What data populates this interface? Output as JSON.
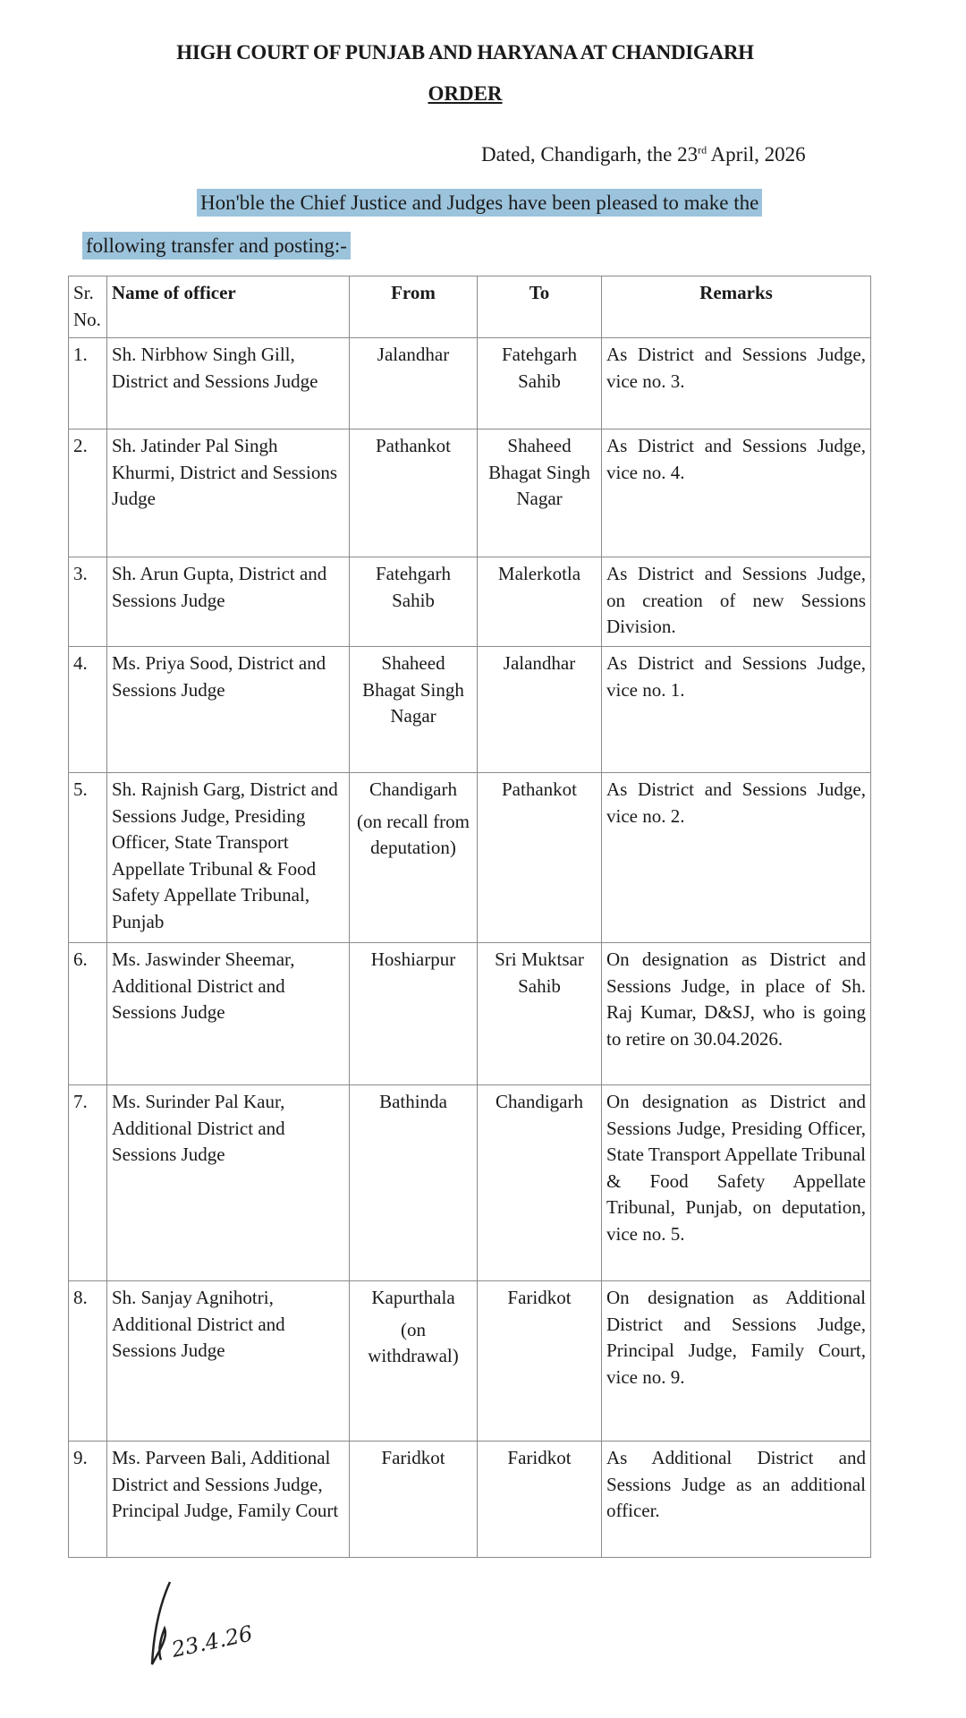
{
  "header": {
    "title": "HIGH COURT OF PUNJAB AND HARYANA  AT CHANDIGARH",
    "order": "ORDER"
  },
  "dated": {
    "prefix": "Dated, Chandigarh, the 23",
    "sup": "rd",
    "suffix": " April, 2026"
  },
  "intro": {
    "line1": "Hon'ble the Chief Justice and Judges have been pleased to make the",
    "line2": "following transfer and posting:-",
    "highlight_color": "#9cc3dc"
  },
  "table": {
    "headers": [
      "Sr. No.",
      "Name of officer",
      "From",
      "To",
      "Remarks"
    ],
    "rows": [
      {
        "sr": "1.",
        "name": "Sh. Nirbhow Singh Gill, District and Sessions Judge",
        "from": "Jalandhar",
        "to": "Fatehgarh Sahib",
        "remarks": "As District and Sessions Judge, vice no. 3."
      },
      {
        "sr": "2.",
        "name": "Sh. Jatinder Pal Singh Khurmi, District and Sessions Judge",
        "from": "Pathankot",
        "to": "Shaheed Bhagat Singh Nagar",
        "remarks": "As District and Sessions Judge, vice no. 4."
      },
      {
        "sr": "3.",
        "name": "Sh. Arun Gupta, District and Sessions Judge",
        "from": "Fatehgarh Sahib",
        "to": "Malerkotla",
        "remarks": "As District and Sessions Judge, on creation of new Sessions Division."
      },
      {
        "sr": "4.",
        "name": "Ms. Priya Sood, District and Sessions Judge",
        "from": "Shaheed Bhagat Singh Nagar",
        "to": "Jalandhar",
        "remarks": "As District and Sessions Judge, vice no. 1."
      },
      {
        "sr": "5.",
        "name": "Sh. Rajnish Garg, District and Sessions Judge, Presiding Officer, State Transport Appellate Tribunal & Food Safety Appellate Tribunal, Punjab",
        "from": "Chandigarh",
        "from_note": "(on recall from deputation)",
        "to": "Pathankot",
        "remarks": "As District and Sessions Judge, vice no. 2."
      },
      {
        "sr": "6.",
        "name": "Ms. Jaswinder Sheemar, Additional District and Sessions Judge",
        "from": "Hoshiarpur",
        "to": "Sri Muktsar Sahib",
        "remarks": "On designation as District and Sessions Judge, in place of Sh. Raj Kumar, D&SJ, who is going to retire on 30.04.2026."
      },
      {
        "sr": "7.",
        "name": "Ms. Surinder Pal Kaur, Additional District and Sessions Judge",
        "from": "Bathinda",
        "to": "Chandigarh",
        "remarks": "On designation as District and Sessions Judge, Presiding Officer, State Transport Appellate Tribunal & Food Safety Appellate Tribunal, Punjab, on deputation, vice no. 5."
      },
      {
        "sr": "8.",
        "name": "Sh. Sanjay Agnihotri, Additional District and Sessions Judge",
        "from": "Kapurthala",
        "from_note": "(on withdrawal)",
        "to": "Faridkot",
        "remarks": "On designation as Additional District and Sessions Judge, Principal Judge, Family Court, vice no. 9."
      },
      {
        "sr": "9.",
        "name": "Ms. Parveen Bali, Additional District and Sessions Judge, Principal Judge, Family Court",
        "from": "Faridkot",
        "to": "Faridkot",
        "remarks": "As Additional District and Sessions Judge as an additional officer."
      }
    ]
  },
  "signature": {
    "text": "23.4.26"
  }
}
